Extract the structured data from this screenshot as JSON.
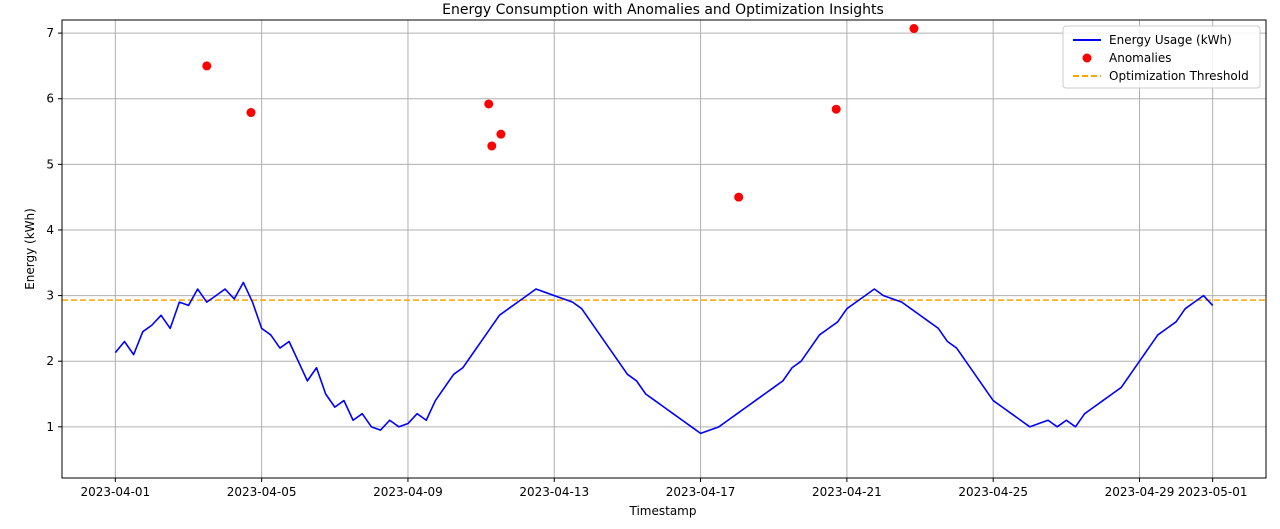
{
  "chart_data": {
    "type": "line",
    "title": "Energy Consumption with Anomalies and Optimization Insights",
    "xlabel": "Timestamp",
    "ylabel": "Energy (kWh)",
    "x_range": [
      "2023-03-30T13:00",
      "2023-05-02T11:00"
    ],
    "ylim": [
      0.22,
      7.2
    ],
    "grid": true,
    "legend_position": "top-right",
    "x_ticks": [
      "2023-04-01",
      "2023-04-05",
      "2023-04-09",
      "2023-04-13",
      "2023-04-17",
      "2023-04-21",
      "2023-04-25",
      "2023-04-29",
      "2023-05-01"
    ],
    "y_ticks": [
      1,
      2,
      3,
      4,
      5,
      6,
      7
    ],
    "x_tick_labels": [
      "2023-04-01",
      "2023-04-05",
      "2023-04-09",
      "2023-04-13",
      "2023-04-17",
      "2023-04-21",
      "2023-04-25",
      "2023-04-29",
      "2023-05-01"
    ],
    "y_tick_labels": [
      "1",
      "2",
      "3",
      "4",
      "5",
      "6",
      "7"
    ],
    "series": [
      {
        "name": "Energy Usage (kWh)",
        "kind": "line",
        "color": "#0000ff",
        "points": [
          [
            "2023-04-01T00:00",
            2.13
          ],
          [
            "2023-04-01T06:00",
            2.3
          ],
          [
            "2023-04-01T12:00",
            2.1
          ],
          [
            "2023-04-01T18:00",
            2.45
          ],
          [
            "2023-04-02T00:00",
            2.55
          ],
          [
            "2023-04-02T06:00",
            2.7
          ],
          [
            "2023-04-02T12:00",
            2.5
          ],
          [
            "2023-04-02T18:00",
            2.9
          ],
          [
            "2023-04-03T00:00",
            2.85
          ],
          [
            "2023-04-03T06:00",
            3.1
          ],
          [
            "2023-04-03T12:00",
            2.9
          ],
          [
            "2023-04-03T18:00",
            3.0
          ],
          [
            "2023-04-04T00:00",
            3.1
          ],
          [
            "2023-04-04T06:00",
            2.95
          ],
          [
            "2023-04-04T12:00",
            3.2
          ],
          [
            "2023-04-04T18:00",
            2.9
          ],
          [
            "2023-04-05T00:00",
            2.5
          ],
          [
            "2023-04-05T06:00",
            2.4
          ],
          [
            "2023-04-05T12:00",
            2.2
          ],
          [
            "2023-04-05T18:00",
            2.3
          ],
          [
            "2023-04-06T00:00",
            2.0
          ],
          [
            "2023-04-06T06:00",
            1.7
          ],
          [
            "2023-04-06T12:00",
            1.9
          ],
          [
            "2023-04-06T18:00",
            1.5
          ],
          [
            "2023-04-07T00:00",
            1.3
          ],
          [
            "2023-04-07T06:00",
            1.4
          ],
          [
            "2023-04-07T12:00",
            1.1
          ],
          [
            "2023-04-07T18:00",
            1.2
          ],
          [
            "2023-04-08T00:00",
            1.0
          ],
          [
            "2023-04-08T06:00",
            0.95
          ],
          [
            "2023-04-08T12:00",
            1.1
          ],
          [
            "2023-04-08T18:00",
            1.0
          ],
          [
            "2023-04-09T00:00",
            1.05
          ],
          [
            "2023-04-09T06:00",
            1.2
          ],
          [
            "2023-04-09T12:00",
            1.1
          ],
          [
            "2023-04-09T18:00",
            1.4
          ],
          [
            "2023-04-10T00:00",
            1.6
          ],
          [
            "2023-04-10T06:00",
            1.8
          ],
          [
            "2023-04-10T12:00",
            1.9
          ],
          [
            "2023-04-10T18:00",
            2.1
          ],
          [
            "2023-04-11T00:00",
            2.3
          ],
          [
            "2023-04-11T06:00",
            2.5
          ],
          [
            "2023-04-11T12:00",
            2.7
          ],
          [
            "2023-04-11T18:00",
            2.8
          ],
          [
            "2023-04-12T00:00",
            2.9
          ],
          [
            "2023-04-12T06:00",
            3.0
          ],
          [
            "2023-04-12T12:00",
            3.1
          ],
          [
            "2023-04-12T18:00",
            3.05
          ],
          [
            "2023-04-13T00:00",
            3.0
          ],
          [
            "2023-04-13T06:00",
            2.95
          ],
          [
            "2023-04-13T12:00",
            2.9
          ],
          [
            "2023-04-13T18:00",
            2.8
          ],
          [
            "2023-04-14T00:00",
            2.6
          ],
          [
            "2023-04-14T06:00",
            2.4
          ],
          [
            "2023-04-14T12:00",
            2.2
          ],
          [
            "2023-04-14T18:00",
            2.0
          ],
          [
            "2023-04-15T00:00",
            1.8
          ],
          [
            "2023-04-15T06:00",
            1.7
          ],
          [
            "2023-04-15T12:00",
            1.5
          ],
          [
            "2023-04-15T18:00",
            1.4
          ],
          [
            "2023-04-16T00:00",
            1.3
          ],
          [
            "2023-04-16T06:00",
            1.2
          ],
          [
            "2023-04-16T12:00",
            1.1
          ],
          [
            "2023-04-16T18:00",
            1.0
          ],
          [
            "2023-04-17T00:00",
            0.9
          ],
          [
            "2023-04-17T06:00",
            0.95
          ],
          [
            "2023-04-17T12:00",
            1.0
          ],
          [
            "2023-04-17T18:00",
            1.1
          ],
          [
            "2023-04-18T00:00",
            1.2
          ],
          [
            "2023-04-18T06:00",
            1.3
          ],
          [
            "2023-04-18T12:00",
            1.4
          ],
          [
            "2023-04-18T18:00",
            1.5
          ],
          [
            "2023-04-19T00:00",
            1.6
          ],
          [
            "2023-04-19T06:00",
            1.7
          ],
          [
            "2023-04-19T12:00",
            1.9
          ],
          [
            "2023-04-19T18:00",
            2.0
          ],
          [
            "2023-04-20T00:00",
            2.2
          ],
          [
            "2023-04-20T06:00",
            2.4
          ],
          [
            "2023-04-20T12:00",
            2.5
          ],
          [
            "2023-04-20T18:00",
            2.6
          ],
          [
            "2023-04-21T00:00",
            2.8
          ],
          [
            "2023-04-21T06:00",
            2.9
          ],
          [
            "2023-04-21T12:00",
            3.0
          ],
          [
            "2023-04-21T18:00",
            3.1
          ],
          [
            "2023-04-22T00:00",
            3.0
          ],
          [
            "2023-04-22T06:00",
            2.95
          ],
          [
            "2023-04-22T12:00",
            2.9
          ],
          [
            "2023-04-22T18:00",
            2.8
          ],
          [
            "2023-04-23T00:00",
            2.7
          ],
          [
            "2023-04-23T06:00",
            2.6
          ],
          [
            "2023-04-23T12:00",
            2.5
          ],
          [
            "2023-04-23T18:00",
            2.3
          ],
          [
            "2023-04-24T00:00",
            2.2
          ],
          [
            "2023-04-24T06:00",
            2.0
          ],
          [
            "2023-04-24T12:00",
            1.8
          ],
          [
            "2023-04-24T18:00",
            1.6
          ],
          [
            "2023-04-25T00:00",
            1.4
          ],
          [
            "2023-04-25T06:00",
            1.3
          ],
          [
            "2023-04-25T12:00",
            1.2
          ],
          [
            "2023-04-25T18:00",
            1.1
          ],
          [
            "2023-04-26T00:00",
            1.0
          ],
          [
            "2023-04-26T06:00",
            1.05
          ],
          [
            "2023-04-26T12:00",
            1.1
          ],
          [
            "2023-04-26T18:00",
            1.0
          ],
          [
            "2023-04-27T00:00",
            1.1
          ],
          [
            "2023-04-27T06:00",
            1.0
          ],
          [
            "2023-04-27T12:00",
            1.2
          ],
          [
            "2023-04-27T18:00",
            1.3
          ],
          [
            "2023-04-28T00:00",
            1.4
          ],
          [
            "2023-04-28T06:00",
            1.5
          ],
          [
            "2023-04-28T12:00",
            1.6
          ],
          [
            "2023-04-28T18:00",
            1.8
          ],
          [
            "2023-04-29T00:00",
            2.0
          ],
          [
            "2023-04-29T06:00",
            2.2
          ],
          [
            "2023-04-29T12:00",
            2.4
          ],
          [
            "2023-04-29T18:00",
            2.5
          ],
          [
            "2023-04-30T00:00",
            2.6
          ],
          [
            "2023-04-30T06:00",
            2.8
          ],
          [
            "2023-04-30T12:00",
            2.9
          ],
          [
            "2023-04-30T18:00",
            3.0
          ],
          [
            "2023-05-01T00:00",
            2.85
          ]
        ]
      },
      {
        "name": "Anomalies",
        "kind": "scatter",
        "color": "#ff0000",
        "points": [
          [
            "2023-04-03T12:00",
            6.5
          ],
          [
            "2023-04-04T17:00",
            5.79
          ],
          [
            "2023-04-11T05:00",
            5.92
          ],
          [
            "2023-04-11T07:00",
            5.28
          ],
          [
            "2023-04-11T13:00",
            5.46
          ],
          [
            "2023-04-18T01:00",
            4.5
          ],
          [
            "2023-04-20T17:00",
            5.84
          ],
          [
            "2023-04-22T20:00",
            7.07
          ]
        ]
      },
      {
        "name": "Optimization Threshold",
        "kind": "hline",
        "color": "#ffa500",
        "y": 2.93
      }
    ]
  }
}
